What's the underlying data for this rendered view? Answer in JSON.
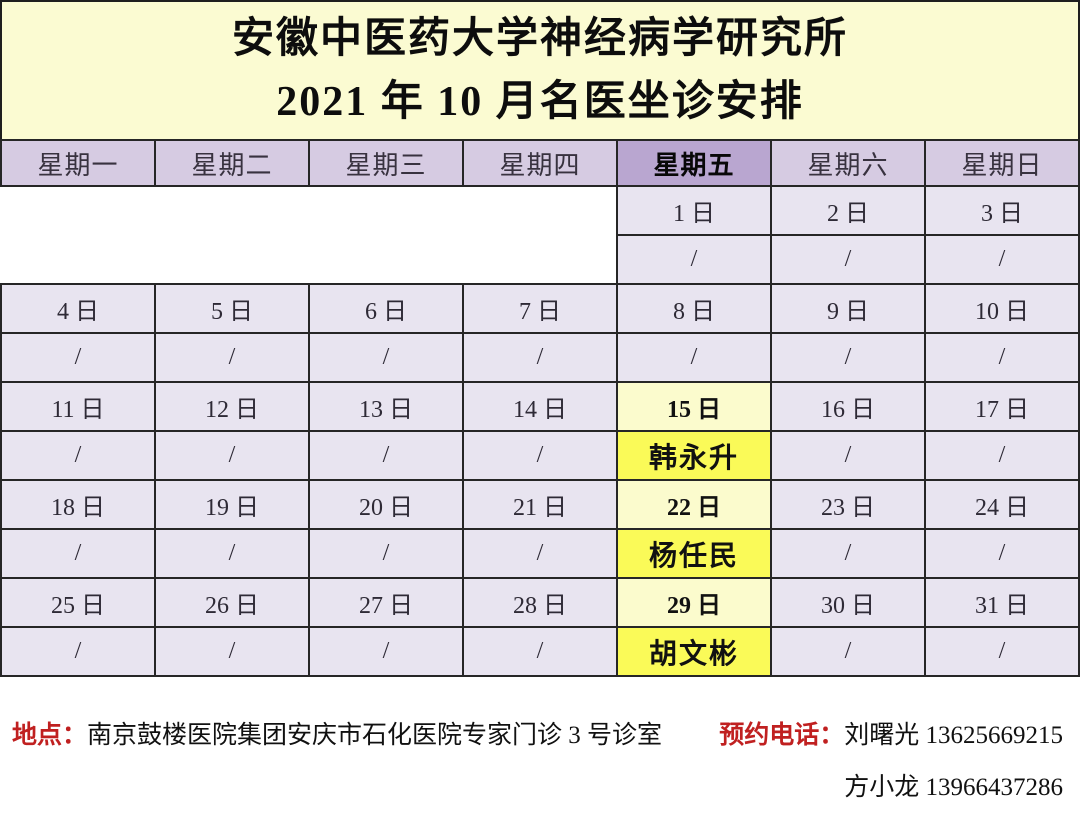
{
  "title": {
    "line1": "安徽中医药大学神经病学研究所",
    "line2": "2021 年 10 月名医坐诊安排"
  },
  "weekday_header": {
    "mon": "星期一",
    "tue": "星期二",
    "wed": "星期三",
    "thu": "星期四",
    "fri": "星期五",
    "sat": "星期六",
    "sun": "星期日"
  },
  "highlighted_weekday": "星期五",
  "calendar": {
    "week1": {
      "dates": [
        "1 日",
        "2 日",
        "3 日"
      ],
      "slots": [
        "/",
        "/",
        "/"
      ]
    },
    "week2": {
      "dates": [
        "4 日",
        "5 日",
        "6 日",
        "7 日",
        "8 日",
        "9 日",
        "10 日"
      ],
      "slots": [
        "/",
        "/",
        "/",
        "/",
        "/",
        "/",
        "/"
      ]
    },
    "week3": {
      "dates": [
        "11 日",
        "12 日",
        "13 日",
        "14 日",
        "15 日",
        "16 日",
        "17 日"
      ],
      "slots": [
        "/",
        "/",
        "/",
        "/",
        "韩永升",
        "/",
        "/"
      ]
    },
    "week4": {
      "dates": [
        "18 日",
        "19 日",
        "20 日",
        "21 日",
        "22 日",
        "23 日",
        "24 日"
      ],
      "slots": [
        "/",
        "/",
        "/",
        "/",
        "杨任民",
        "/",
        "/"
      ]
    },
    "week5": {
      "dates": [
        "25 日",
        "26 日",
        "27 日",
        "28 日",
        "29 日",
        "30 日",
        "31 日"
      ],
      "slots": [
        "/",
        "/",
        "/",
        "/",
        "胡文彬",
        "/",
        "/"
      ]
    }
  },
  "doctors": [
    "韩永升",
    "杨任民",
    "胡文彬"
  ],
  "footer": {
    "location_label": "地点：",
    "location": "南京鼓楼医院集团安庆市石化医院专家门诊 3 号诊室",
    "phone_label": "预约电话：",
    "contact1": "刘曙光 13625669215",
    "contact2": "方小龙 13966437286"
  },
  "colors": {
    "title_bg": "#FBFBD2",
    "weekday_header_bg": "#D6CBE2",
    "friday_header_bg": "#B9A6D0",
    "cell_bg": "#E8E4F0",
    "friday_date_bg": "#FBFBCD",
    "doctor_cell_bg": "#FAFA58",
    "label_red": "#C02020",
    "border": "#262626"
  }
}
